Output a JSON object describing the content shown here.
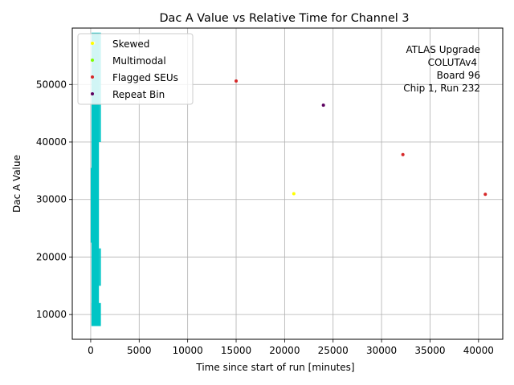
{
  "chart_data": {
    "type": "scatter",
    "title": "Dac A Value vs Relative Time for Channel 3",
    "xlabel": "Time since start of run [minutes]",
    "ylabel": "Dac A Value",
    "xlim": [
      -1900,
      42500
    ],
    "ylim": [
      5700,
      59800
    ],
    "xticks": [
      0,
      5000,
      10000,
      15000,
      20000,
      25000,
      30000,
      35000,
      40000
    ],
    "yticks": [
      10000,
      20000,
      30000,
      40000,
      50000
    ],
    "xtick_labels": [
      "0",
      "5000",
      "10000",
      "15000",
      "20000",
      "25000",
      "30000",
      "35000",
      "40000"
    ],
    "ytick_labels": [
      "10000",
      "20000",
      "30000",
      "40000",
      "50000"
    ],
    "grid": true,
    "legend_position": "upper-left",
    "annotation_lines": [
      "ATLAS Upgrade",
      "COLUTAv4",
      "Board 96",
      "Chip 1, Run 232"
    ],
    "main_data_color": "#00c5c5",
    "main_data_bands": [
      {
        "x_start": 0,
        "x_end": 50,
        "y_min": 22500,
        "y_max": 35500
      },
      {
        "x_start": 80,
        "x_end": 1050,
        "y_min": 8000,
        "y_max": 12000
      },
      {
        "x_start": 80,
        "x_end": 850,
        "y_min": 8000,
        "y_max": 59000
      },
      {
        "x_start": 850,
        "x_end": 1050,
        "y_min": 15000,
        "y_max": 21500
      },
      {
        "x_start": 850,
        "x_end": 1050,
        "y_min": 40000,
        "y_max": 59000
      }
    ],
    "series": [
      {
        "name": "Skewed",
        "color": "#ffff00",
        "x": [
          300,
          20950
        ],
        "y": [
          57200,
          31000
        ]
      },
      {
        "name": "Multimodal",
        "color": "#80ff00",
        "x": [],
        "y": []
      },
      {
        "name": "Flagged SEUs",
        "color": "#d62728",
        "x": [
          15000,
          32200,
          40700
        ],
        "y": [
          50600,
          37800,
          30900
        ]
      },
      {
        "name": "Repeat Bin",
        "color": "#5c0060",
        "x": [
          24000
        ],
        "y": [
          46400
        ]
      }
    ]
  }
}
